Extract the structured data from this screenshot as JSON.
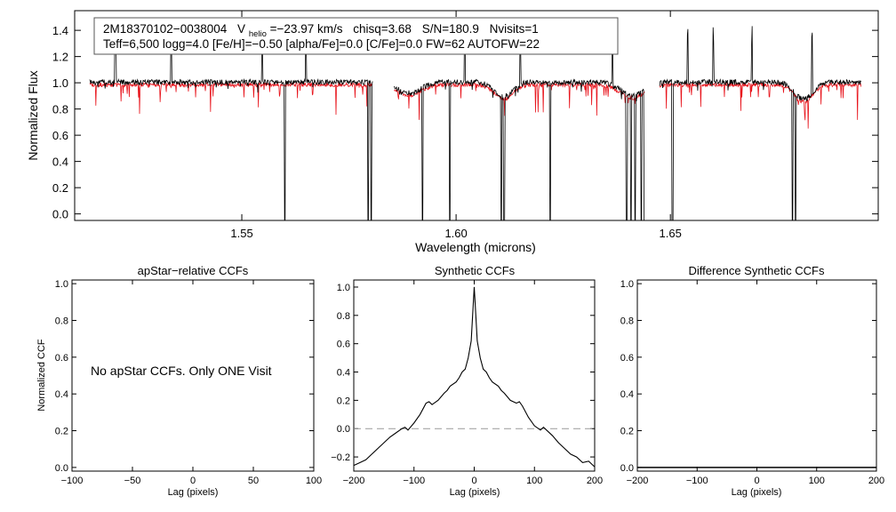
{
  "chart_data": [
    {
      "type": "line",
      "id": "spectrum",
      "xlabel": "Wavelength (microns)",
      "ylabel": "Normalized Flux",
      "xlim": [
        1.511,
        1.6985
      ],
      "ylim": [
        -0.05,
        1.55
      ],
      "xticks": [
        1.55,
        1.6,
        1.65
      ],
      "xtick_labels": [
        "1.55",
        "1.60",
        "1.65"
      ],
      "yticks": [
        0.0,
        0.2,
        0.4,
        0.6,
        0.8,
        1.0,
        1.2,
        1.4
      ],
      "ytick_labels": [
        "0.0",
        "0.2",
        "0.4",
        "0.6",
        "0.8",
        "1.0",
        "1.2",
        "1.4"
      ],
      "annotation": {
        "star": "2M18370102−0038004",
        "v_prefix": "V",
        "v_sub": "helio",
        "v_value": "=−23.97 km/s",
        "chisq": "chisq=3.68",
        "snr": "S/N=180.9",
        "nvisits": "Nvisits=1",
        "params": "Teff=6,500 logg=4.0 [Fe/H]=−0.50 [alpha/Fe]=0.0 [C/Fe]=0.0 FW=62 AUTOFW=22"
      },
      "chips": [
        [
          1.5145,
          1.5805
        ],
        [
          1.5855,
          1.644
        ],
        [
          1.6475,
          1.6945
        ]
      ],
      "series": [
        {
          "name": "observed",
          "color": "#000000"
        },
        {
          "name": "synthetic",
          "color": "#e8141c"
        }
      ],
      "bad_pixel_dropouts": [
        1.56,
        1.5795,
        1.5802,
        1.5812,
        1.5815,
        1.5922,
        1.5985,
        1.6105,
        1.6112,
        1.622,
        1.6398,
        1.6408,
        1.6418,
        1.6432,
        1.644,
        1.6505,
        1.6785,
        1.6792
      ]
    },
    {
      "type": "line",
      "id": "apstar",
      "title": "apStar−relative CCFs",
      "xlabel": "Lag (pixels)",
      "ylabel": "Normalized CCF",
      "xlim": [
        -100,
        100
      ],
      "ylim": [
        -0.02,
        1.02
      ],
      "xticks": [
        -100,
        -50,
        0,
        50,
        100
      ],
      "xtick_labels": [
        "−100",
        "−50",
        "0",
        "50",
        "100"
      ],
      "yticks": [
        0.0,
        0.2,
        0.4,
        0.6,
        0.8,
        1.0
      ],
      "ytick_labels": [
        "0.0",
        "0.2",
        "0.4",
        "0.6",
        "0.8",
        "1.0"
      ],
      "message": "No apStar CCFs.  Only ONE Visit"
    },
    {
      "type": "line",
      "id": "synthetic",
      "title": "Synthetic CCFs",
      "xlabel": "Lag (pixels)",
      "xlim": [
        -200,
        200
      ],
      "ylim": [
        -0.3,
        1.05
      ],
      "xticks": [
        -200,
        -100,
        0,
        100,
        200
      ],
      "xtick_labels": [
        "−200",
        "−100",
        "0",
        "100",
        "200"
      ],
      "yticks": [
        -0.2,
        0.0,
        0.2,
        0.4,
        0.6,
        0.8,
        1.0
      ],
      "ytick_labels": [
        "−0.2",
        "0.0",
        "0.2",
        "0.4",
        "0.6",
        "0.8",
        "1.0"
      ],
      "zero_line": 0.0,
      "x": [
        -200,
        -190,
        -180,
        -170,
        -160,
        -150,
        -140,
        -130,
        -120,
        -115,
        -110,
        -100,
        -90,
        -80,
        -75,
        -70,
        -60,
        -50,
        -45,
        -40,
        -30,
        -25,
        -20,
        -15,
        -10,
        -5,
        -2,
        0,
        2,
        5,
        10,
        15,
        20,
        25,
        30,
        40,
        45,
        50,
        60,
        70,
        75,
        80,
        90,
        100,
        110,
        115,
        120,
        130,
        140,
        150,
        160,
        170,
        180,
        190,
        200
      ],
      "y": [
        -0.26,
        -0.24,
        -0.22,
        -0.18,
        -0.14,
        -0.1,
        -0.06,
        -0.03,
        0.0,
        0.01,
        -0.01,
        0.04,
        0.1,
        0.18,
        0.19,
        0.17,
        0.2,
        0.25,
        0.27,
        0.3,
        0.33,
        0.36,
        0.4,
        0.42,
        0.5,
        0.62,
        0.85,
        1.0,
        0.85,
        0.62,
        0.5,
        0.42,
        0.4,
        0.36,
        0.33,
        0.3,
        0.27,
        0.25,
        0.2,
        0.18,
        0.19,
        0.16,
        0.08,
        0.02,
        -0.01,
        0.01,
        -0.01,
        -0.05,
        -0.1,
        -0.14,
        -0.18,
        -0.2,
        -0.24,
        -0.23,
        -0.27
      ]
    },
    {
      "type": "line",
      "id": "difference",
      "title": "Difference Synthetic CCFs",
      "xlabel": "Lag (pixels)",
      "xlim": [
        -200,
        200
      ],
      "ylim": [
        -0.02,
        1.02
      ],
      "xticks": [
        -200,
        -100,
        0,
        100,
        200
      ],
      "xtick_labels": [
        "−200",
        "−100",
        "0",
        "100",
        "200"
      ],
      "yticks": [
        0.0,
        0.2,
        0.4,
        0.6,
        0.8,
        1.0
      ],
      "ytick_labels": [
        "0.0",
        "0.2",
        "0.4",
        "0.6",
        "0.8",
        "1.0"
      ],
      "x": [
        -200,
        200
      ],
      "y": [
        0.0,
        0.0
      ]
    }
  ]
}
